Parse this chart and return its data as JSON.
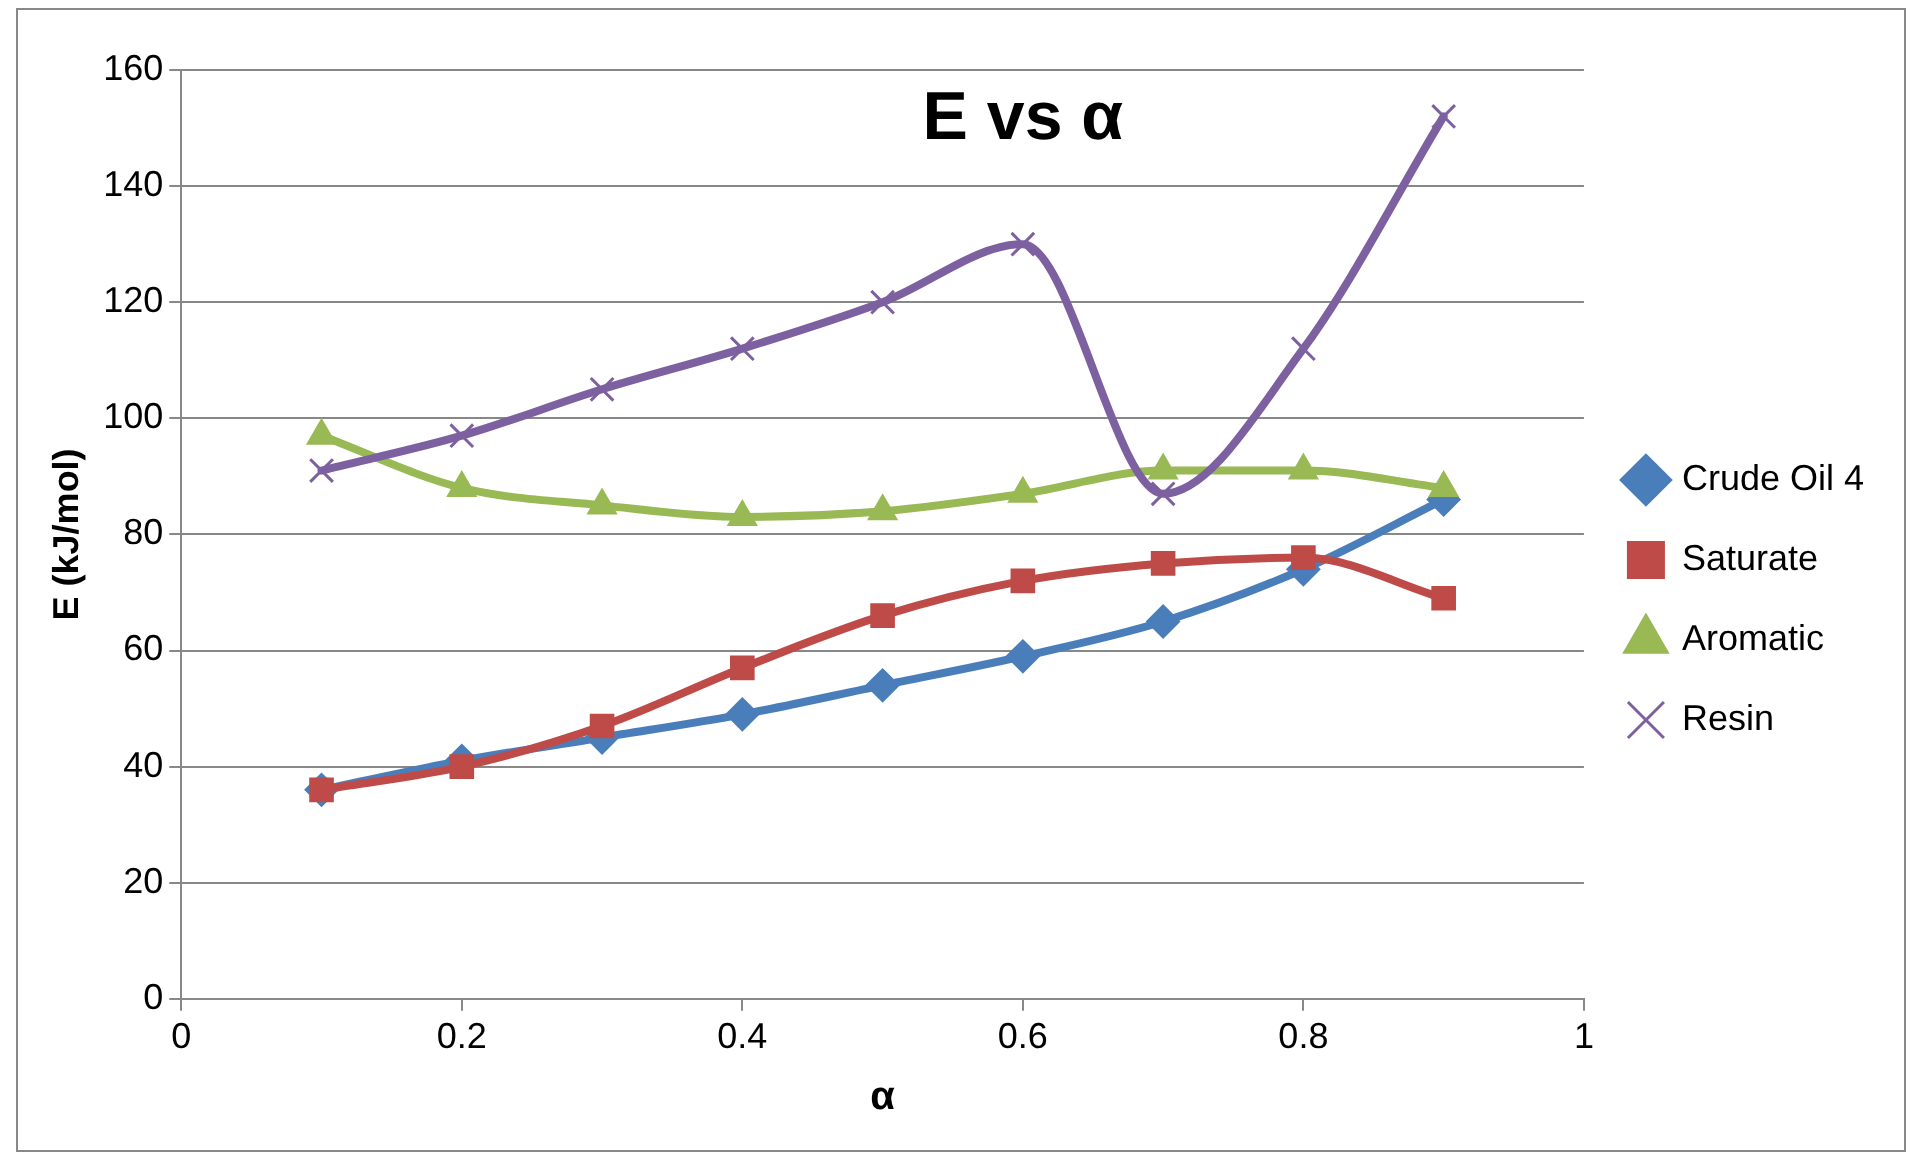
{
  "chart_data": {
    "type": "line",
    "title": "E vs α",
    "xlabel": "α",
    "ylabel": "E (kJ/mol)",
    "x": [
      0.1,
      0.2,
      0.3,
      0.4,
      0.5,
      0.6,
      0.7,
      0.8,
      0.9
    ],
    "xlim": [
      0,
      1
    ],
    "xticks": [
      0,
      0.2,
      0.4,
      0.6,
      0.8,
      1
    ],
    "ylim": [
      0,
      160
    ],
    "yticks": [
      0,
      20,
      40,
      60,
      80,
      100,
      120,
      140,
      160
    ],
    "grid": "y",
    "legend": "right",
    "line_style": "solid",
    "series": [
      {
        "name": "Crude Oil 4",
        "color": "#4a7ebb",
        "marker": "diamond",
        "values": [
          36,
          41,
          45,
          49,
          54,
          59,
          65,
          74,
          86
        ]
      },
      {
        "name": "Saturate",
        "color": "#be4b48",
        "marker": "square",
        "values": [
          36,
          40,
          47,
          57,
          66,
          72,
          75,
          76,
          69
        ]
      },
      {
        "name": "Aromatic",
        "color": "#98b954",
        "marker": "triangle",
        "values": [
          97,
          88,
          85,
          83,
          84,
          87,
          91,
          91,
          88
        ]
      },
      {
        "name": "Resin",
        "color": "#7d60a0",
        "marker": "cross",
        "values": [
          91,
          97,
          105,
          112,
          120,
          130,
          87,
          112,
          152
        ]
      }
    ]
  }
}
